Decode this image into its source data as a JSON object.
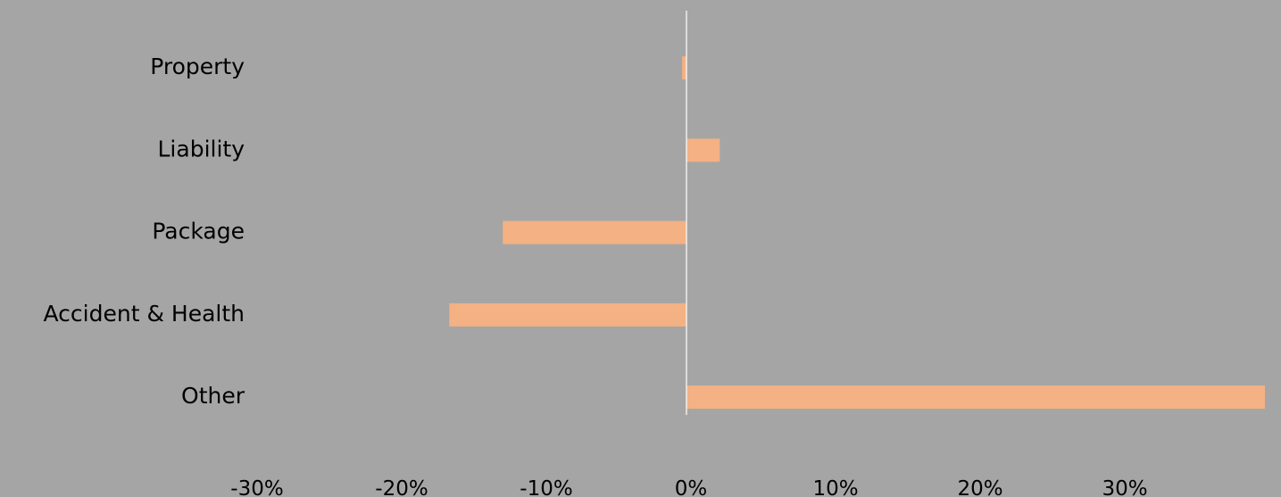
{
  "chart_data": {
    "type": "bar",
    "orientation": "horizontal",
    "categories": [
      "Property",
      "Liability",
      "Package",
      "Accident & Health",
      "Other"
    ],
    "series": [
      {
        "values": [
          -0.3,
          2.3,
          -12.7,
          -16.4,
          40.0
        ]
      }
    ],
    "xlim": [
      -30,
      40
    ],
    "x_ticks": [
      "-30%",
      "-20%",
      "-10%",
      "0%",
      "10%",
      "20%",
      "30%"
    ],
    "x_tick_values": [
      -30,
      -20,
      -10,
      0,
      10,
      20,
      30
    ],
    "title": "",
    "xlabel": "",
    "ylabel": "",
    "grid": false,
    "legend": "none"
  },
  "colors": {
    "background": "#a5a5a5",
    "plot_area": "#a5a5a5",
    "bar": "#f4b183",
    "zero_line": "#ffffff",
    "text": "#000000"
  }
}
